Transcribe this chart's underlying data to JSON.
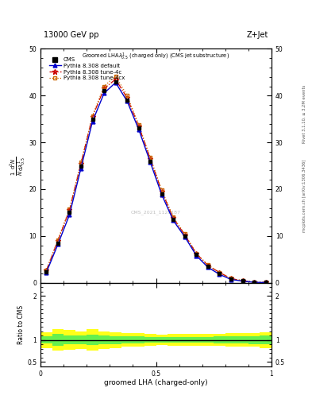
{
  "title_top": "13000 GeV pp",
  "title_right": "Z+Jet",
  "xlabel": "groomed LHA (charged-only)",
  "ylabel_ratio": "Ratio to CMS",
  "right_label_top": "Rivet 3.1.10, ≥ 3.2M events",
  "right_label_bot": "mcplots.cern.ch [arXiv:1306.3436]",
  "watermark": "CMS_2021_1120187",
  "x_data": [
    0.025,
    0.075,
    0.125,
    0.175,
    0.225,
    0.275,
    0.325,
    0.375,
    0.425,
    0.475,
    0.525,
    0.575,
    0.625,
    0.675,
    0.725,
    0.775,
    0.825,
    0.875,
    0.925,
    0.975
  ],
  "cms_y": [
    2.4,
    8.5,
    15.0,
    25.0,
    35.0,
    41.0,
    43.0,
    39.0,
    33.0,
    26.0,
    19.0,
    13.5,
    10.0,
    6.0,
    3.5,
    2.0,
    0.8,
    0.4,
    0.1,
    0.05
  ],
  "pythia_default_y": [
    2.2,
    8.2,
    14.5,
    24.5,
    34.5,
    40.5,
    42.8,
    38.8,
    32.8,
    25.8,
    18.8,
    13.3,
    9.8,
    5.8,
    3.3,
    1.8,
    0.7,
    0.35,
    0.1,
    0.05
  ],
  "pythia_4c_y": [
    2.6,
    9.0,
    15.5,
    25.5,
    35.5,
    41.5,
    43.5,
    39.5,
    33.5,
    26.5,
    19.5,
    13.8,
    10.2,
    6.2,
    3.7,
    2.2,
    0.9,
    0.45,
    0.12,
    0.06
  ],
  "pythia_4cx_y": [
    2.7,
    9.2,
    15.7,
    25.7,
    35.7,
    42.0,
    44.2,
    40.0,
    33.8,
    26.8,
    19.8,
    14.0,
    10.4,
    6.3,
    3.8,
    2.2,
    0.9,
    0.45,
    0.12,
    0.06
  ],
  "cms_color": "#000000",
  "default_color": "#0000cc",
  "tune4c_color": "#cc0000",
  "tune4cx_color": "#cc6600",
  "ylim_main": [
    0,
    50
  ],
  "yticks_main": [
    0,
    10,
    20,
    30,
    40,
    50
  ],
  "ytick_labels_main": [
    "0",
    "10",
    "20",
    "30",
    "40",
    "50"
  ],
  "ylim_ratio": [
    0.4,
    2.3
  ],
  "ratio_yticks": [
    0.5,
    1.0,
    2.0
  ],
  "ratio_ytick_labels": [
    "0.5",
    "1",
    "2"
  ],
  "green_band_lo": [
    0.92,
    0.87,
    0.9,
    0.9,
    0.88,
    0.9,
    0.91,
    0.92,
    0.92,
    0.93,
    0.94,
    0.93,
    0.93,
    0.93,
    0.93,
    0.92,
    0.92,
    0.92,
    0.91,
    0.9
  ],
  "green_band_hi": [
    1.08,
    1.13,
    1.1,
    1.1,
    1.12,
    1.1,
    1.09,
    1.08,
    1.08,
    1.07,
    1.06,
    1.07,
    1.07,
    1.07,
    1.07,
    1.08,
    1.08,
    1.08,
    1.09,
    1.1
  ],
  "yellow_band_lo": [
    0.82,
    0.75,
    0.78,
    0.8,
    0.76,
    0.8,
    0.82,
    0.84,
    0.85,
    0.87,
    0.88,
    0.87,
    0.87,
    0.87,
    0.87,
    0.86,
    0.85,
    0.85,
    0.84,
    0.82
  ],
  "yellow_band_hi": [
    1.18,
    1.25,
    1.22,
    1.2,
    1.24,
    1.2,
    1.18,
    1.16,
    1.15,
    1.13,
    1.12,
    1.13,
    1.13,
    1.13,
    1.13,
    1.14,
    1.15,
    1.15,
    1.16,
    1.18
  ],
  "bin_edges": [
    0.0,
    0.05,
    0.1,
    0.15,
    0.2,
    0.25,
    0.3,
    0.35,
    0.4,
    0.45,
    0.5,
    0.55,
    0.6,
    0.65,
    0.7,
    0.75,
    0.8,
    0.85,
    0.9,
    0.95,
    1.0
  ]
}
